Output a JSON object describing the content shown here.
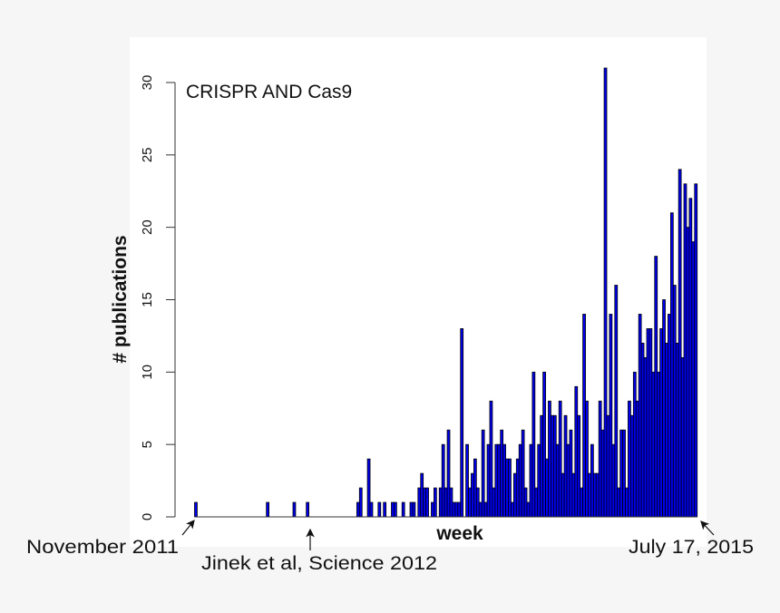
{
  "chart_data": {
    "type": "bar",
    "title": "CRISPR AND Cas9",
    "xlabel": "week",
    "ylabel": "# publications",
    "ylim": [
      0,
      31
    ],
    "yticks": [
      0,
      5,
      10,
      15,
      20,
      25,
      30
    ],
    "grid": false,
    "bar_color": "#0000ee",
    "bar_edge_color": "#000000",
    "annotations": [
      {
        "text": "November 2011",
        "points_to": "first week"
      },
      {
        "text": "Jinek et al, Science 2012",
        "points_to": "week of Jinek et al publication"
      },
      {
        "text": "July 17, 2015",
        "points_to": "last week"
      }
    ],
    "values": [
      1,
      0,
      0,
      0,
      0,
      0,
      0,
      0,
      0,
      0,
      0,
      0,
      0,
      0,
      0,
      0,
      0,
      0,
      0,
      0,
      0,
      0,
      0,
      0,
      0,
      0,
      0,
      1,
      0,
      0,
      0,
      0,
      0,
      0,
      0,
      0,
      0,
      1,
      0,
      0,
      0,
      0,
      1,
      0,
      0,
      0,
      0,
      0,
      0,
      0,
      0,
      0,
      0,
      0,
      0,
      0,
      0,
      0,
      0,
      0,
      0,
      1,
      2,
      0,
      0,
      4,
      1,
      0,
      0,
      1,
      0,
      1,
      0,
      0,
      1,
      1,
      0,
      0,
      1,
      0,
      0,
      1,
      1,
      0,
      2,
      3,
      2,
      2,
      0,
      1,
      2,
      0,
      2,
      5,
      2,
      6,
      2,
      1,
      1,
      1,
      13,
      0,
      5,
      2,
      3,
      4,
      2,
      1,
      6,
      1,
      5,
      8,
      2,
      5,
      5,
      6,
      5,
      4,
      4,
      1,
      3,
      4,
      5,
      6,
      2,
      1,
      5,
      10,
      2,
      5,
      7,
      10,
      4,
      8,
      7,
      7,
      5,
      8,
      3,
      7,
      5,
      6,
      3,
      9,
      7,
      2,
      14,
      8,
      3,
      5,
      3,
      3,
      8,
      6,
      31,
      7,
      14,
      5,
      16,
      2,
      6,
      6,
      2,
      8,
      7,
      10,
      8,
      14,
      12,
      11,
      13,
      13,
      10,
      18,
      10,
      13,
      15,
      12,
      14,
      21,
      16,
      12,
      24,
      11,
      23,
      20,
      22,
      19,
      23
    ]
  }
}
